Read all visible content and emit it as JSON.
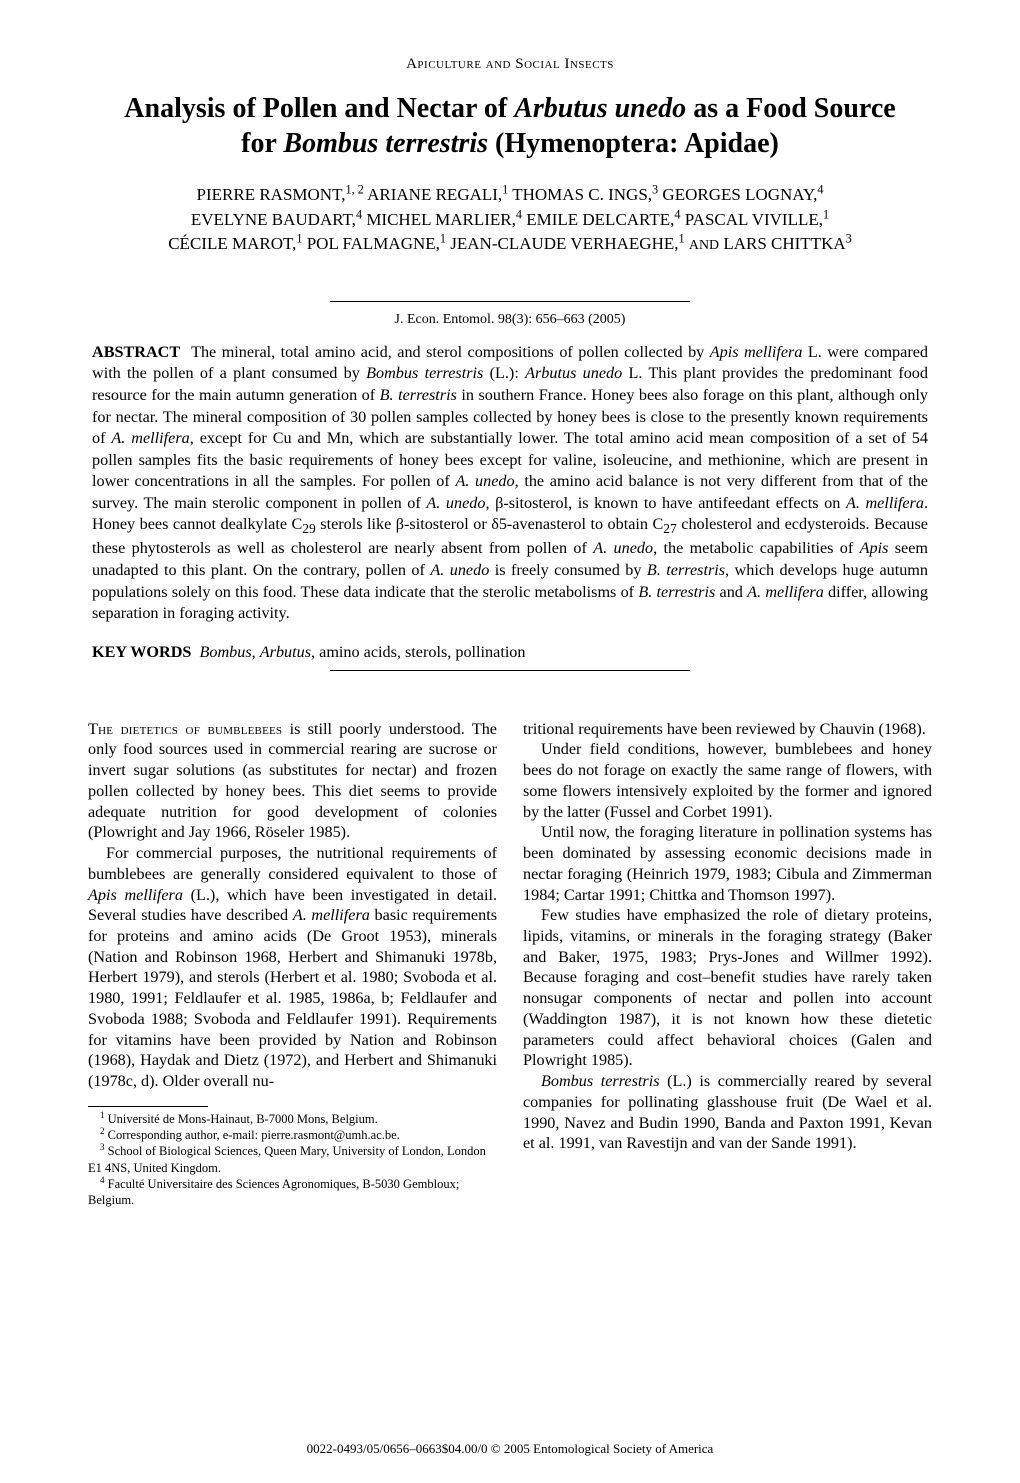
{
  "header": {
    "section_label": "Apiculture and Social Insects"
  },
  "title_html": "Analysis of Pollen and Nectar of <span class='ital'>Arbutus unedo</span> as a Food Source for <span class='ital'>Bombus terrestris</span> (Hymenoptera: Apidae)",
  "authors_html": "PIERRE RASMONT,<sup>1, 2</sup> ARIANE REGALI,<sup>1</sup> THOMAS C. INGS,<sup>3</sup> GEORGES LOGNAY,<sup>4</sup><br>EVELYNE BAUDART,<sup>4</sup> MICHEL MARLIER,<sup>4</sup> EMILE DELCARTE,<sup>4</sup> PASCAL VIVILLE,<sup>1</sup><br>CÉCILE MAROT,<sup>1</sup> POL FALMAGNE,<sup>1</sup> JEAN-CLAUDE VERHAEGHE,<sup>1</sup> <span style='font-size:0.82em'>AND</span> LARS CHITTKA<sup>3</sup>",
  "citation": "J. Econ. Entomol. 98(3): 656–663 (2005)",
  "abstract": {
    "label": "ABSTRACT",
    "text_html": "&nbsp;&nbsp;The mineral, total amino acid, and sterol compositions of pollen collected by <span class='ital'>Apis mellifera</span> L. were compared with the pollen of a plant consumed by <span class='ital'>Bombus terrestris</span> (L.): <span class='ital'>Arbutus unedo</span> L. This plant provides the predominant food resource for the main autumn generation of <span class='ital'>B. terrestris</span> in southern France. Honey bees also forage on this plant, although only for nectar. The mineral composition of 30 pollen samples collected by honey bees is close to the presently known requirements of <span class='ital'>A. mellifera</span>, except for Cu and Mn, which are substantially lower. The total amino acid mean composition of a set of 54 pollen samples fits the basic requirements of honey bees except for valine, isoleucine, and methionine, which are present in lower concentrations in all the samples. For pollen of <span class='ital'>A. unedo</span>, the amino acid balance is not very different from that of the survey. The main sterolic component in pollen of <span class='ital'>A. unedo</span>, β-sitosterol, is known to have antifeedant effects on <span class='ital'>A. mellifera</span>. Honey bees cannot dealkylate C<sub>29</sub> sterols like β-sitosterol or δ5-avenasterol to obtain C<sub>27</sub> cholesterol and ecdysteroids. Because these phytosterols as well as cholesterol are nearly absent from pollen of <span class='ital'>A. unedo</span>, the metabolic capabilities of <span class='ital'>Apis</span> seem unadapted to this plant. On the contrary, pollen of <span class='ital'>A. unedo</span> is freely consumed by <span class='ital'>B. terrestris</span>, which develops huge autumn populations solely on this food. These data indicate that the sterolic metabolisms of <span class='ital'>B. terrestris</span> and <span class='ital'>A. mellifera</span> differ, allowing separation in foraging activity."
  },
  "keywords": {
    "label": "KEY WORDS",
    "text_html": "&nbsp;&nbsp;<span class='ital'>Bombus</span>, <span class='ital'>Arbutus</span>, amino acids, sterols, pollination"
  },
  "body": {
    "left": [
      "<span class='smallcaps-lead'>The dietetics of bumblebees</span> is still poorly understood. The only food sources used in commercial rearing are sucrose or invert sugar solutions (as substitutes for nectar) and frozen pollen collected by honey bees. This diet seems to provide adequate nutrition for good development of colonies (Plowright and Jay 1966, Röseler 1985).",
      "For commercial purposes, the nutritional requirements of bumblebees are generally considered equivalent to those of <span class='ital'>Apis mellifera</span> (L.), which have been investigated in detail. Several studies have described <span class='ital'>A. mellifera</span> basic requirements for proteins and amino acids (De Groot 1953), minerals (Nation and Robinson 1968, Herbert and Shimanuki 1978b, Herbert 1979), and sterols (Herbert et al. 1980; Svoboda et al. 1980, 1991; Feldlaufer et al. 1985, 1986a, b; Feldlaufer and Svoboda 1988; Svoboda and Feldlaufer 1991). Requirements for vitamins have been provided by Nation and Robinson (1968), Haydak and Dietz (1972), and Herbert and Shimanuki (1978c, d). Older overall nu-"
    ],
    "right": [
      "tritional requirements have been reviewed by Chauvin (1968).",
      "Under field conditions, however, bumblebees and honey bees do not forage on exactly the same range of flowers, with some flowers intensively exploited by the former and ignored by the latter (Fussel and Corbet 1991).",
      "Until now, the foraging literature in pollination systems has been dominated by assessing economic decisions made in nectar foraging (Heinrich 1979, 1983; Cibula and Zimmerman 1984; Cartar 1991; Chittka and Thomson 1997).",
      "Few studies have emphasized the role of dietary proteins, lipids, vitamins, or minerals in the foraging strategy (Baker and Baker, 1975, 1983; Prys-Jones and Willmer 1992). Because foraging and cost–benefit studies have rarely taken nonsugar components of nectar and pollen into account (Waddington 1987), it is not known how these dietetic parameters could affect behavioral choices (Galen and Plowright 1985).",
      "<span class='ital'>Bombus terrestris</span> (L.) is commercially reared by several companies for pollinating glasshouse fruit (De Wael et al. 1990, Navez and Budin 1990, Banda and Paxton 1991, Kevan et al. 1991, van Ravestijn and van der Sande 1991)."
    ]
  },
  "footnotes": [
    "<sup>1</sup> Université de Mons-Hainaut, B-7000 Mons, Belgium.",
    "<sup>2</sup> Corresponding author, e-mail: pierre.rasmont@umh.ac.be.",
    "<sup>3</sup> School of Biological Sciences, Queen Mary, University of London, London E1 4NS, United Kingdom.",
    "<sup>4</sup> Faculté Universitaire des Sciences Agronomiques, B-5030 Gembloux; Belgium."
  ],
  "copyright": "0022-0493/05/0656–0663$04.00/0 © 2005 Entomological Society of America"
}
